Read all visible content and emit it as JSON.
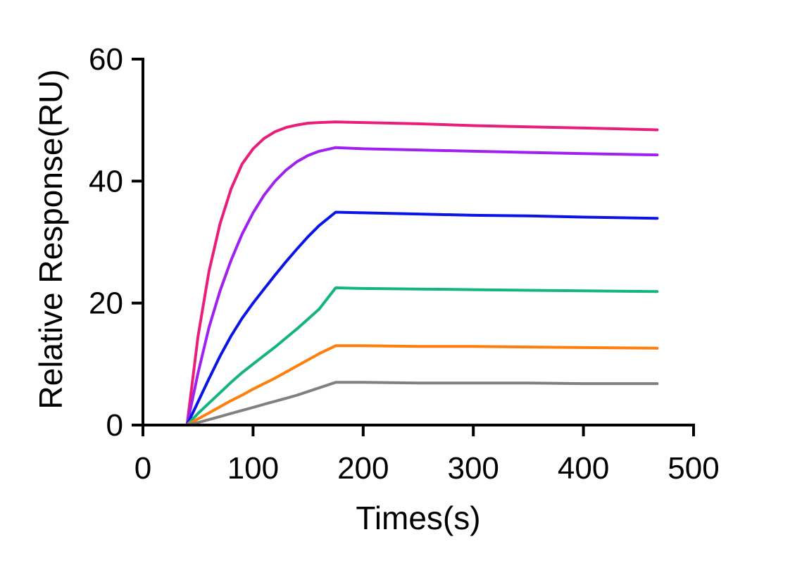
{
  "chart_data": {
    "type": "line",
    "title": "",
    "xlabel": "Times(s)",
    "ylabel": "Relative Response(RU)",
    "xlim": [
      0,
      500
    ],
    "ylim": [
      0,
      60
    ],
    "xticks": [
      0,
      100,
      200,
      300,
      400,
      500
    ],
    "yticks": [
      0,
      20,
      40,
      60
    ],
    "grid": false,
    "x": [
      0,
      40,
      50,
      60,
      70,
      80,
      90,
      100,
      110,
      120,
      130,
      140,
      150,
      160,
      175,
      200,
      250,
      300,
      350,
      400,
      467
    ],
    "series": [
      {
        "color": "#e91e7a",
        "values": [
          0,
          0,
          14.5,
          25.2,
          33.0,
          38.7,
          42.8,
          45.3,
          47.0,
          48.1,
          48.8,
          49.2,
          49.5,
          49.6,
          49.7,
          49.6,
          49.4,
          49.1,
          48.9,
          48.7,
          48.4
        ]
      },
      {
        "color": "#a020f0",
        "values": [
          0,
          0,
          8.5,
          16.0,
          22.0,
          27.0,
          31.3,
          34.8,
          37.7,
          40.0,
          41.8,
          43.2,
          44.2,
          44.9,
          45.5,
          45.3,
          45.1,
          44.9,
          44.7,
          44.5,
          44.3
        ]
      },
      {
        "color": "#0a14e6",
        "values": [
          0,
          0,
          3.8,
          7.6,
          11.3,
          14.6,
          17.5,
          20.0,
          22.3,
          24.6,
          26.8,
          28.9,
          30.9,
          32.7,
          34.9,
          34.8,
          34.6,
          34.4,
          34.3,
          34.1,
          33.9
        ]
      },
      {
        "color": "#13b57c",
        "values": [
          0,
          0,
          1.9,
          3.6,
          5.3,
          7.0,
          8.6,
          10.0,
          11.4,
          12.8,
          14.3,
          15.8,
          17.4,
          19.0,
          22.5,
          22.4,
          22.3,
          22.2,
          22.1,
          22.0,
          21.9
        ]
      },
      {
        "color": "#ff7f0e",
        "values": [
          0,
          0,
          1.0,
          2.0,
          3.0,
          4.0,
          4.9,
          5.9,
          6.8,
          7.7,
          8.7,
          9.7,
          10.7,
          11.7,
          13.0,
          13.0,
          12.9,
          12.9,
          12.8,
          12.7,
          12.6
        ]
      },
      {
        "color": "#808080",
        "values": [
          0,
          0,
          0.4,
          0.9,
          1.4,
          1.9,
          2.4,
          2.9,
          3.4,
          3.9,
          4.4,
          4.9,
          5.5,
          6.1,
          7.0,
          7.0,
          6.9,
          6.9,
          6.9,
          6.8,
          6.8
        ]
      }
    ]
  }
}
